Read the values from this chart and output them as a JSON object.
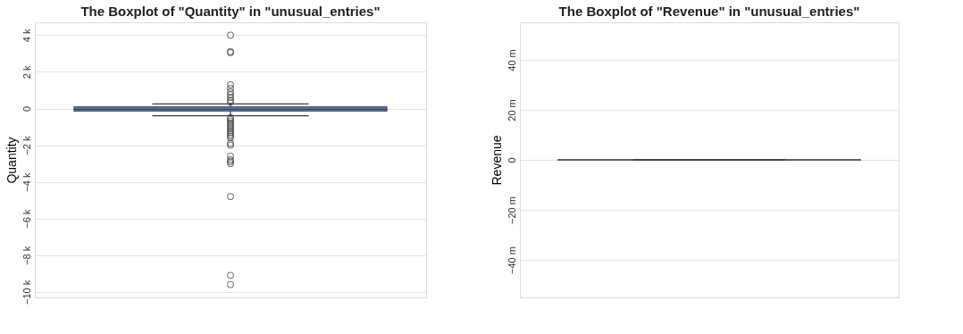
{
  "chart_data": [
    {
      "type": "box",
      "title": "The Boxplot of \"Quantity\" in \"unusual_entries\"",
      "ylabel": "Quantity",
      "categories": [
        null
      ],
      "boxes": [
        {
          "low": -400,
          "q1": -150,
          "median": -50,
          "q3": 100,
          "high": 250,
          "outliers": [
            4000,
            3100,
            3050,
            1300,
            1100,
            900,
            750,
            600,
            450,
            350,
            -500,
            -600,
            -700,
            -800,
            -900,
            -1000,
            -1100,
            -1200,
            -1300,
            -1400,
            -1500,
            -1600,
            -1900,
            -2000,
            -2600,
            -2800,
            -2900,
            -3000,
            -4800,
            -9100,
            -9600
          ]
        }
      ],
      "color": "#4c72b0",
      "ylim": [
        -10300,
        4700
      ],
      "yticks": [
        {
          "value": -10000,
          "label": "−10 k"
        },
        {
          "value": -8000,
          "label": "−8 k"
        },
        {
          "value": -6000,
          "label": "−6 k"
        },
        {
          "value": -4000,
          "label": "−4 k"
        },
        {
          "value": -2000,
          "label": "−2 k"
        },
        0,
        {
          "value": 2000,
          "label": "2 k"
        },
        {
          "value": 4000,
          "label": "4 k"
        }
      ],
      "grid": "y",
      "tick_labels": "y"
    },
    {
      "type": "box",
      "title": "The Boxplot of \"Revenue\" in \"unusual_entries\"",
      "ylabel": "Revenue",
      "categories": [
        null
      ],
      "boxes": [
        {
          "low": 0,
          "q1": 0,
          "median": 0,
          "q3": 0,
          "high": 0
        }
      ],
      "ylim": [
        -55000000,
        55000000
      ],
      "yticks": [
        {
          "value": -40000000,
          "label": "−40 m"
        },
        {
          "value": -20000000,
          "label": "−20 m"
        },
        0,
        {
          "value": 20000000,
          "label": "20 m"
        },
        {
          "value": 40000000,
          "label": "40 m"
        }
      ],
      "grid": "y",
      "tick_labels": "y"
    }
  ]
}
